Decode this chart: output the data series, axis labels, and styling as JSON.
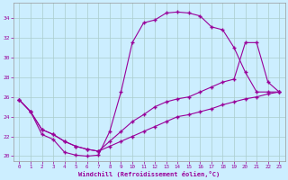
{
  "bg_color": "#cceeff",
  "line_color": "#990099",
  "grid_color": "#aacccc",
  "xlim": [
    -0.5,
    23.5
  ],
  "ylim": [
    19.5,
    35.5
  ],
  "xticks": [
    0,
    1,
    2,
    3,
    4,
    5,
    6,
    7,
    8,
    9,
    10,
    11,
    12,
    13,
    14,
    15,
    16,
    17,
    18,
    19,
    20,
    21,
    22,
    23
  ],
  "yticks": [
    20,
    22,
    24,
    26,
    28,
    30,
    32,
    34
  ],
  "xlabel": "Windchill (Refroidissement éolien,°C)",
  "line1_x": [
    0,
    1,
    2,
    3,
    4,
    5,
    6,
    7,
    8,
    9,
    10,
    11,
    12,
    13,
    14,
    15,
    16,
    17,
    18,
    19,
    20,
    21,
    22,
    23
  ],
  "line1_y": [
    25.7,
    24.5,
    22.2,
    21.7,
    20.4,
    20.1,
    20.0,
    20.1,
    22.5,
    26.5,
    31.5,
    33.5,
    33.8,
    34.5,
    34.6,
    34.5,
    34.2,
    33.1,
    32.8,
    31.0,
    28.5,
    26.5,
    26.5,
    26.5
  ],
  "line2_x": [
    0,
    1,
    2,
    3,
    4,
    5,
    6,
    7,
    8,
    9,
    10,
    11,
    12,
    13,
    14,
    15,
    16,
    17,
    18,
    19,
    20,
    21,
    22,
    23
  ],
  "line2_y": [
    25.7,
    24.5,
    22.7,
    22.2,
    21.5,
    21.0,
    20.7,
    20.5,
    21.5,
    22.5,
    23.5,
    24.2,
    25.0,
    25.5,
    25.8,
    26.0,
    26.5,
    27.0,
    27.5,
    27.8,
    31.5,
    31.5,
    27.5,
    26.5
  ],
  "line3_x": [
    0,
    1,
    2,
    3,
    4,
    5,
    6,
    7,
    8,
    9,
    10,
    11,
    12,
    13,
    14,
    15,
    16,
    17,
    18,
    19,
    20,
    21,
    22,
    23
  ],
  "line3_y": [
    25.7,
    24.5,
    22.7,
    22.2,
    21.5,
    21.0,
    20.7,
    20.5,
    21.0,
    21.5,
    22.0,
    22.5,
    23.0,
    23.5,
    24.0,
    24.2,
    24.5,
    24.8,
    25.2,
    25.5,
    25.8,
    26.0,
    26.3,
    26.5
  ]
}
